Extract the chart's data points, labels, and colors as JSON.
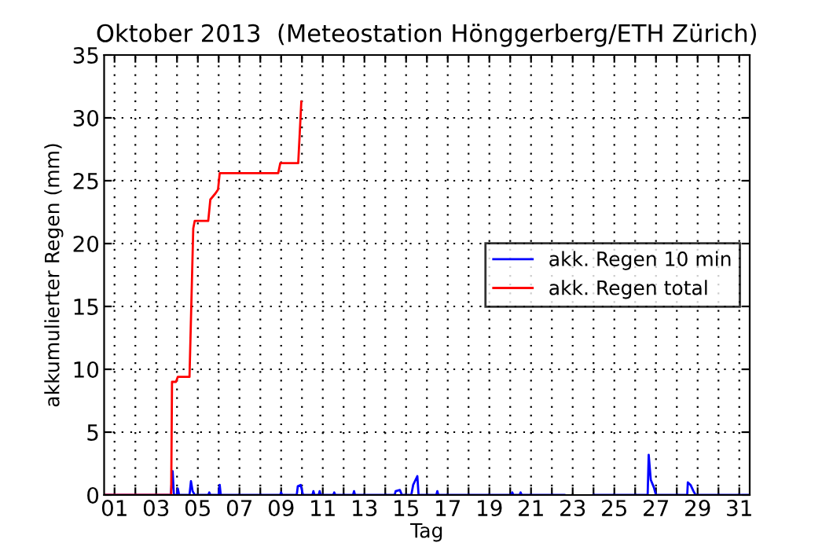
{
  "chart_data": {
    "type": "line",
    "title": "Oktober 2013  (Meteostation Hönggerberg/ETH Zürich)",
    "xlabel": "Tag",
    "ylabel": "akkumulierter Regen (mm)",
    "xlim": [
      0.5,
      31.5
    ],
    "ylim": [
      0,
      35
    ],
    "yticks": [
      0,
      5,
      10,
      15,
      20,
      25,
      30,
      35
    ],
    "xticks": [
      {
        "value": 1,
        "label": "01"
      },
      {
        "value": 2,
        "label": null
      },
      {
        "value": 3,
        "label": "03"
      },
      {
        "value": 4,
        "label": null
      },
      {
        "value": 5,
        "label": "05"
      },
      {
        "value": 6,
        "label": null
      },
      {
        "value": 7,
        "label": "07"
      },
      {
        "value": 8,
        "label": null
      },
      {
        "value": 9,
        "label": "09"
      },
      {
        "value": 10,
        "label": null
      },
      {
        "value": 11,
        "label": "11"
      },
      {
        "value": 12,
        "label": null
      },
      {
        "value": 13,
        "label": "13"
      },
      {
        "value": 14,
        "label": null
      },
      {
        "value": 15,
        "label": "15"
      },
      {
        "value": 16,
        "label": null
      },
      {
        "value": 17,
        "label": "17"
      },
      {
        "value": 18,
        "label": null
      },
      {
        "value": 19,
        "label": "19"
      },
      {
        "value": 20,
        "label": null
      },
      {
        "value": 21,
        "label": "21"
      },
      {
        "value": 22,
        "label": null
      },
      {
        "value": 23,
        "label": "23"
      },
      {
        "value": 24,
        "label": null
      },
      {
        "value": 25,
        "label": "25"
      },
      {
        "value": 26,
        "label": null
      },
      {
        "value": 27,
        "label": "27"
      },
      {
        "value": 28,
        "label": null
      },
      {
        "value": 29,
        "label": "29"
      },
      {
        "value": 30,
        "label": null
      },
      {
        "value": 31,
        "label": "31"
      }
    ],
    "grid": true,
    "legend": "right",
    "line_style": "solid",
    "series": [
      {
        "name": "akk. Regen 10 min",
        "color": "#0000ff",
        "x": [
          0.5,
          3.7,
          3.79,
          3.85,
          4.0,
          4.04,
          4.1,
          4.6,
          4.67,
          4.75,
          4.85,
          5.5,
          5.55,
          5.6,
          6.0,
          6.05,
          6.1,
          8.95,
          9.0,
          9.05,
          9.75,
          9.8,
          9.94,
          10.05,
          10.5,
          10.55,
          10.6,
          10.8,
          10.85,
          10.9,
          11.5,
          11.55,
          11.6,
          12.45,
          12.5,
          12.55,
          14.45,
          14.5,
          14.7,
          14.8,
          15.25,
          15.34,
          15.54,
          15.6,
          16.45,
          16.5,
          16.55,
          20.05,
          20.1,
          20.15,
          20.45,
          20.5,
          20.55,
          22.6,
          23.3,
          24.0,
          26.6,
          26.65,
          26.75,
          26.9,
          27.0,
          28.5,
          28.53,
          28.66,
          28.8,
          28.9,
          31.5
        ],
        "values": [
          0,
          0,
          1.9,
          0,
          0,
          0.5,
          0,
          0,
          1.1,
          0.3,
          0,
          0,
          0.2,
          0,
          0,
          0.8,
          0,
          0,
          0.2,
          0,
          0,
          0.7,
          0.8,
          0,
          0,
          0.3,
          0,
          0,
          0.3,
          0,
          0,
          0.2,
          0,
          0,
          0.3,
          0,
          0,
          0.3,
          0.4,
          0,
          0,
          0.8,
          1.5,
          0,
          0,
          0.3,
          0,
          0,
          0.2,
          0,
          0,
          0.2,
          0,
          0,
          null,
          0,
          0,
          3.2,
          1.2,
          0.6,
          0,
          0,
          1.0,
          0.8,
          0.3,
          0,
          0
        ]
      },
      {
        "name": "akk. Regen total",
        "color": "#ff0000",
        "x": [
          0.5,
          3.72,
          3.76,
          3.95,
          4.04,
          4.6,
          4.78,
          4.85,
          5.5,
          5.6,
          5.85,
          5.97,
          6.05,
          8.86,
          8.96,
          9.82,
          9.97
        ],
        "values": [
          0,
          0,
          9.0,
          9.0,
          9.4,
          9.4,
          21.2,
          21.8,
          21.8,
          23.5,
          24.0,
          24.3,
          25.6,
          25.6,
          26.4,
          26.4,
          31.3
        ]
      }
    ]
  }
}
